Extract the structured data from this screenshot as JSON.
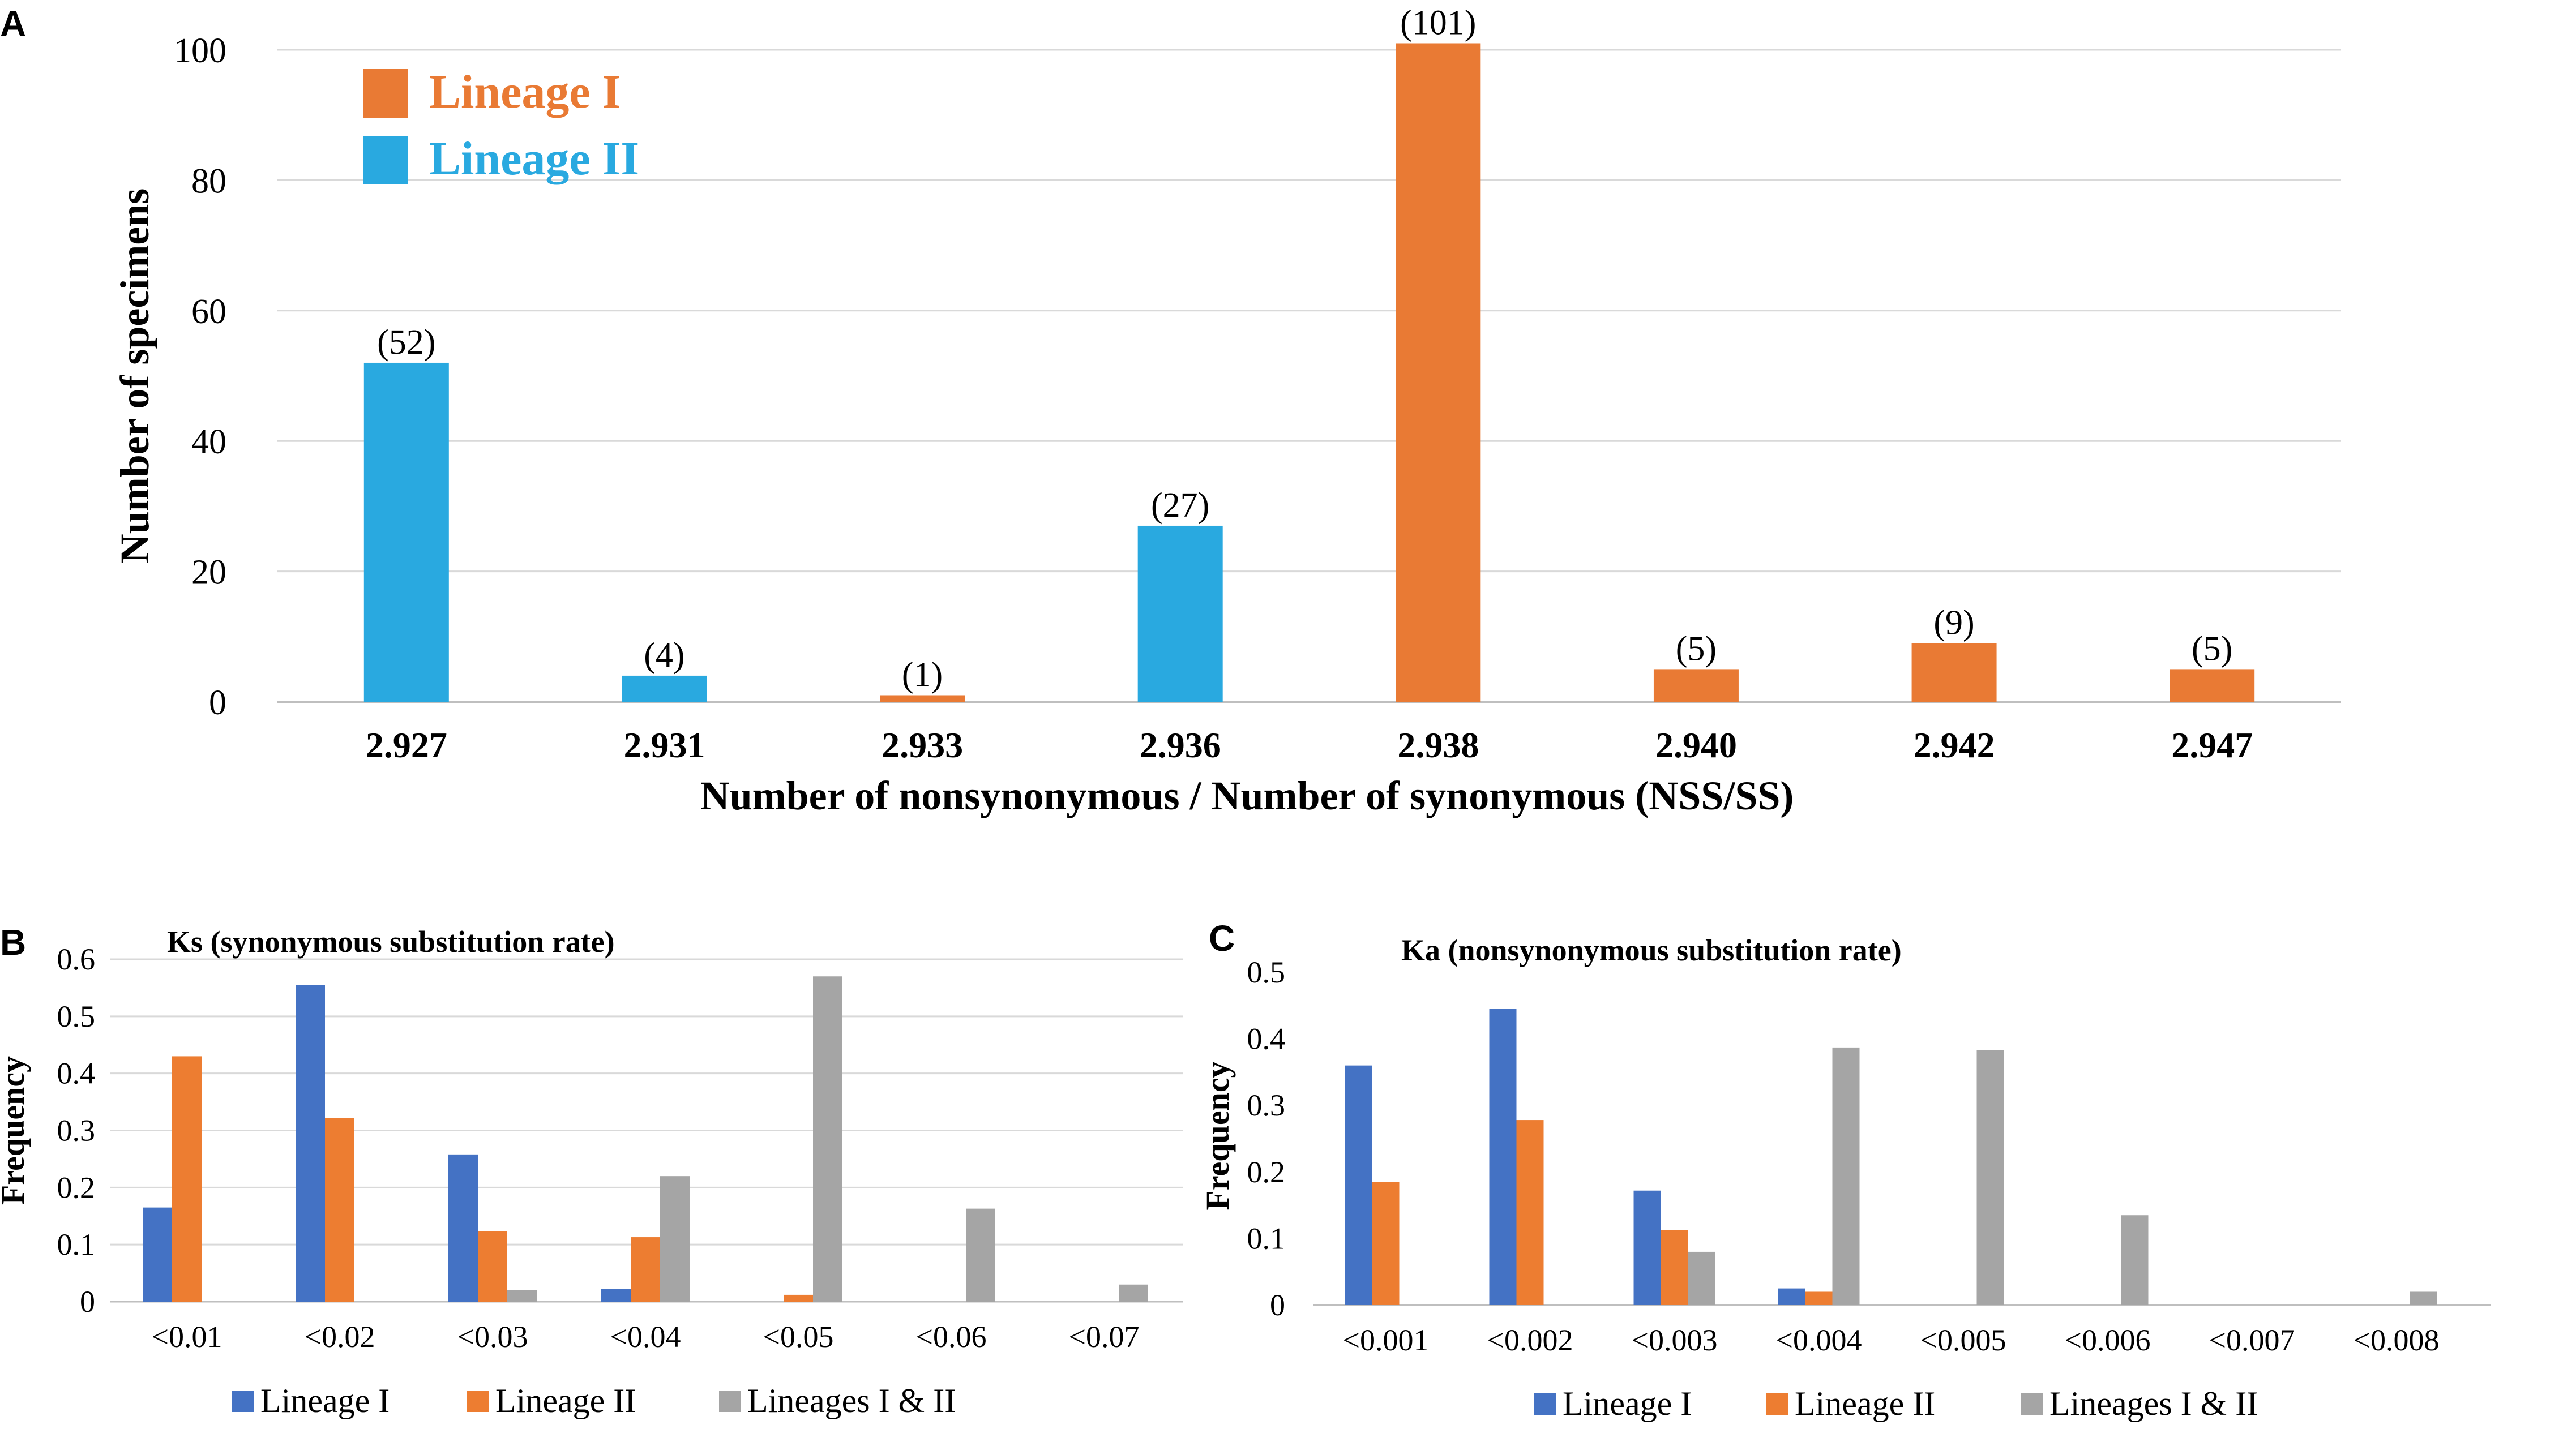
{
  "panels": {
    "a_label": "A",
    "b_label": "B",
    "c_label": "C"
  },
  "colors": {
    "lineage1_a": "#E97A34",
    "lineage2_a": "#29A9E0",
    "blue": "#4472C4",
    "orange": "#ED7D31",
    "gray": "#A5A5A5",
    "grid": "#D9D9D9",
    "axis": "#BFBFBF"
  },
  "chart_data": [
    {
      "id": "A",
      "type": "bar",
      "title": "",
      "xlabel": "Number of nonsynonymous / Number of synonymous (NSS/SS)",
      "ylabel": "Number of specimens",
      "ylim": [
        0,
        100
      ],
      "yticks": [
        0,
        20,
        40,
        60,
        80,
        100
      ],
      "categories": [
        "2.927",
        "2.931",
        "2.933",
        "2.936",
        "2.938",
        "2.940",
        "2.942",
        "2.947"
      ],
      "values": [
        52,
        4,
        1,
        27,
        101,
        5,
        9,
        5
      ],
      "value_labels": [
        "(52)",
        "(4)",
        "(1)",
        "(27)",
        "(101)",
        "(5)",
        "(9)",
        "(5)"
      ],
      "series_of_bar": [
        "Lineage II",
        "Lineage II",
        "Lineage I",
        "Lineage II",
        "Lineage I",
        "Lineage I",
        "Lineage I",
        "Lineage I"
      ],
      "legend": [
        "Lineage I",
        "Lineage II"
      ],
      "legend_position": "top-left",
      "grid": true
    },
    {
      "id": "B",
      "type": "bar",
      "title": "Ks (synonymous substitution rate)",
      "xlabel": "",
      "ylabel": "Frequency",
      "ylim": [
        0,
        0.6
      ],
      "yticks": [
        "0",
        "0.1",
        "0.2",
        "0.3",
        "0.4",
        "0.5",
        "0.6"
      ],
      "categories": [
        "<0.01",
        "<0.02",
        "<0.03",
        "<0.04",
        "<0.05",
        "<0.06",
        "<0.07"
      ],
      "series": [
        {
          "name": "Lineage I",
          "values": [
            0.165,
            0.555,
            0.258,
            0.022,
            0.0,
            0.0,
            0.0
          ]
        },
        {
          "name": "Lineage II",
          "values": [
            0.43,
            0.322,
            0.123,
            0.113,
            0.012,
            0.0,
            0.0
          ]
        },
        {
          "name": "Lineages I & II",
          "values": [
            0.0,
            0.0,
            0.02,
            0.22,
            0.57,
            0.163,
            0.03
          ]
        }
      ],
      "legend_position": "bottom",
      "grid": true
    },
    {
      "id": "C",
      "type": "bar",
      "title": "Ka (nonsynonymous substitution rate)",
      "xlabel": "",
      "ylabel": "Frequency",
      "ylim": [
        0,
        0.5
      ],
      "yticks": [
        "0",
        "0.1",
        "0.2",
        "0.3",
        "0.4",
        "0.5"
      ],
      "categories": [
        "<0.001",
        "<0.002",
        "<0.003",
        "<0.004",
        "<0.005",
        "<0.006",
        "<0.007",
        "<0.008"
      ],
      "series": [
        {
          "name": "Lineage I",
          "values": [
            0.36,
            0.445,
            0.172,
            0.025,
            0.0,
            0.0,
            0.0,
            0.0
          ]
        },
        {
          "name": "Lineage II",
          "values": [
            0.185,
            0.278,
            0.113,
            0.02,
            0.0,
            0.0,
            0.0,
            0.0
          ]
        },
        {
          "name": "Lineages I & II",
          "values": [
            0.0,
            0.0,
            0.08,
            0.387,
            0.383,
            0.135,
            0.0,
            0.02
          ]
        }
      ],
      "legend_position": "bottom",
      "grid": false
    }
  ]
}
